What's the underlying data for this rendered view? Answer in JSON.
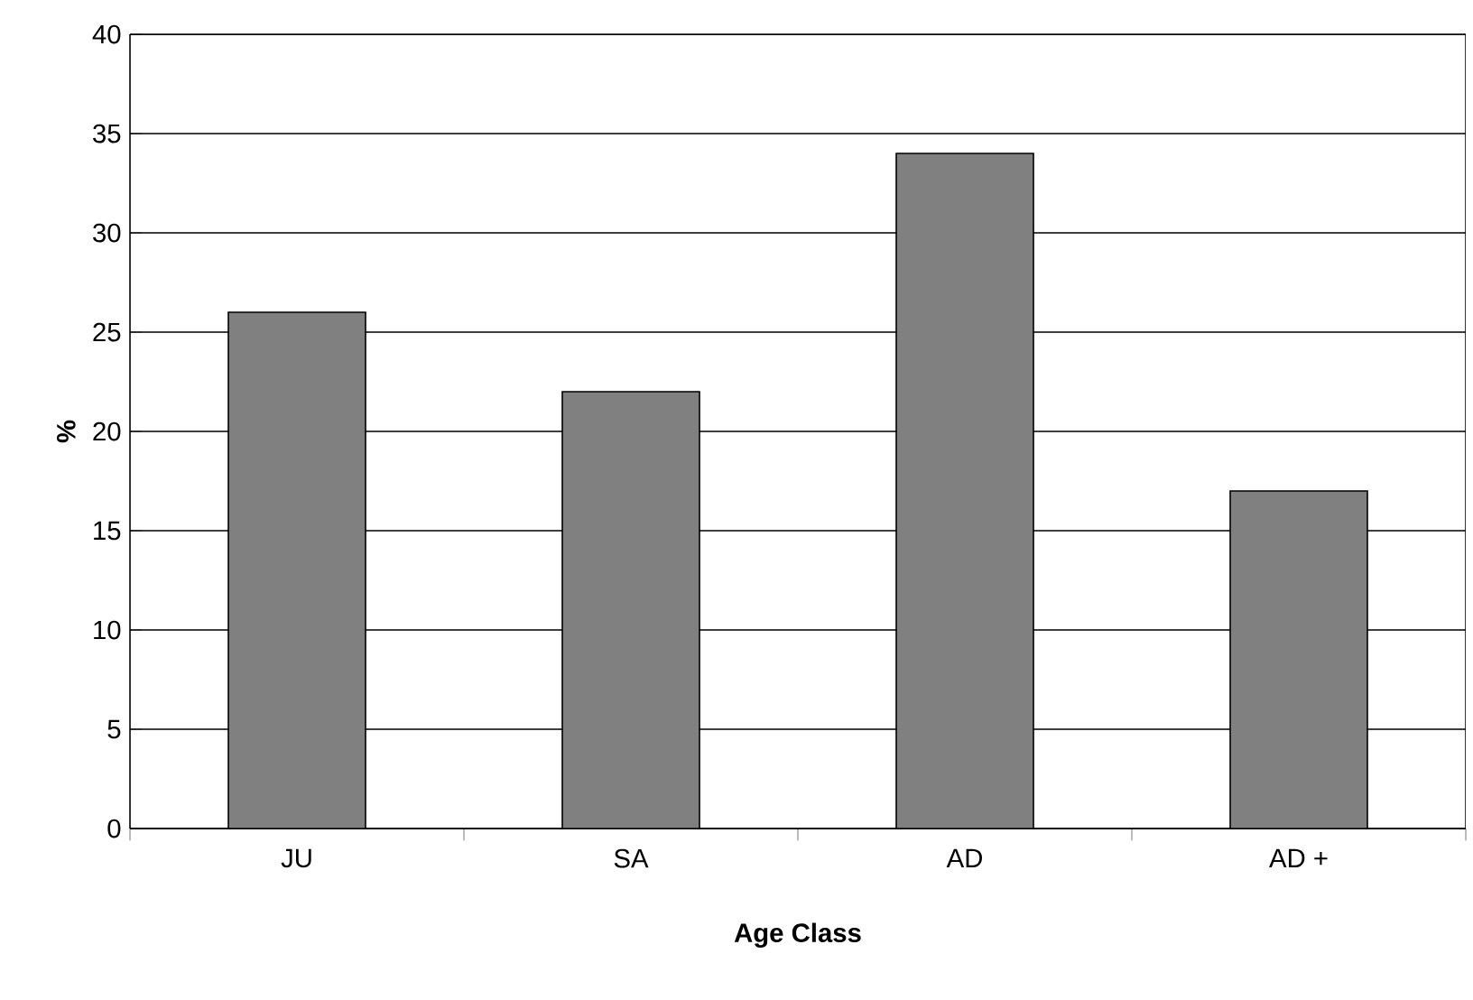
{
  "chart_data": {
    "type": "bar",
    "xlabel": "Age Class",
    "ylabel": "%",
    "categories": [
      "JU",
      "SA",
      "AD",
      "AD +"
    ],
    "values": [
      26,
      22,
      34,
      17
    ],
    "color": "#808080",
    "ylim": [
      0,
      40
    ],
    "yticks": [
      0,
      5,
      10,
      15,
      20,
      25,
      30,
      35,
      40
    ],
    "grid": "y"
  }
}
